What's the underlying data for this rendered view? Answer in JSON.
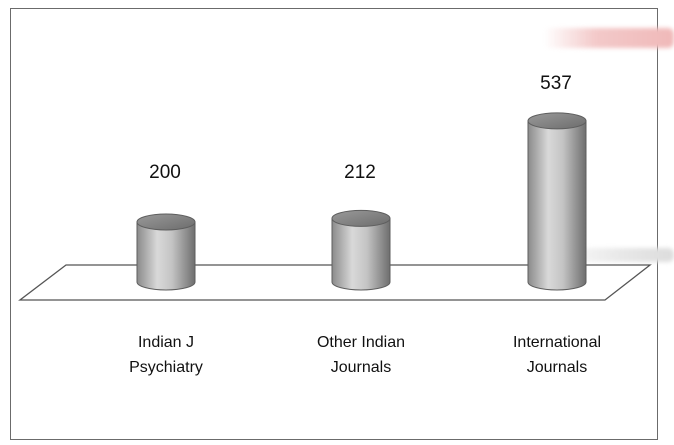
{
  "chart_data": {
    "type": "bar",
    "style": "3d-cylinder",
    "categories": [
      [
        "Indian J",
        "Psychiatry"
      ],
      [
        "Other Indian",
        "Journals"
      ],
      [
        "International",
        "Journals"
      ]
    ],
    "values": [
      200,
      212,
      537
    ],
    "data_labels": [
      "200",
      "212",
      "537"
    ],
    "title": "",
    "xlabel": "",
    "ylabel": "",
    "grid": false,
    "legend": "none",
    "colors": {
      "bar_dark": "#7a7a7a",
      "bar_mid": "#d4d4d4",
      "bar_light": "#bdbdbd",
      "floor": "#555555"
    }
  }
}
